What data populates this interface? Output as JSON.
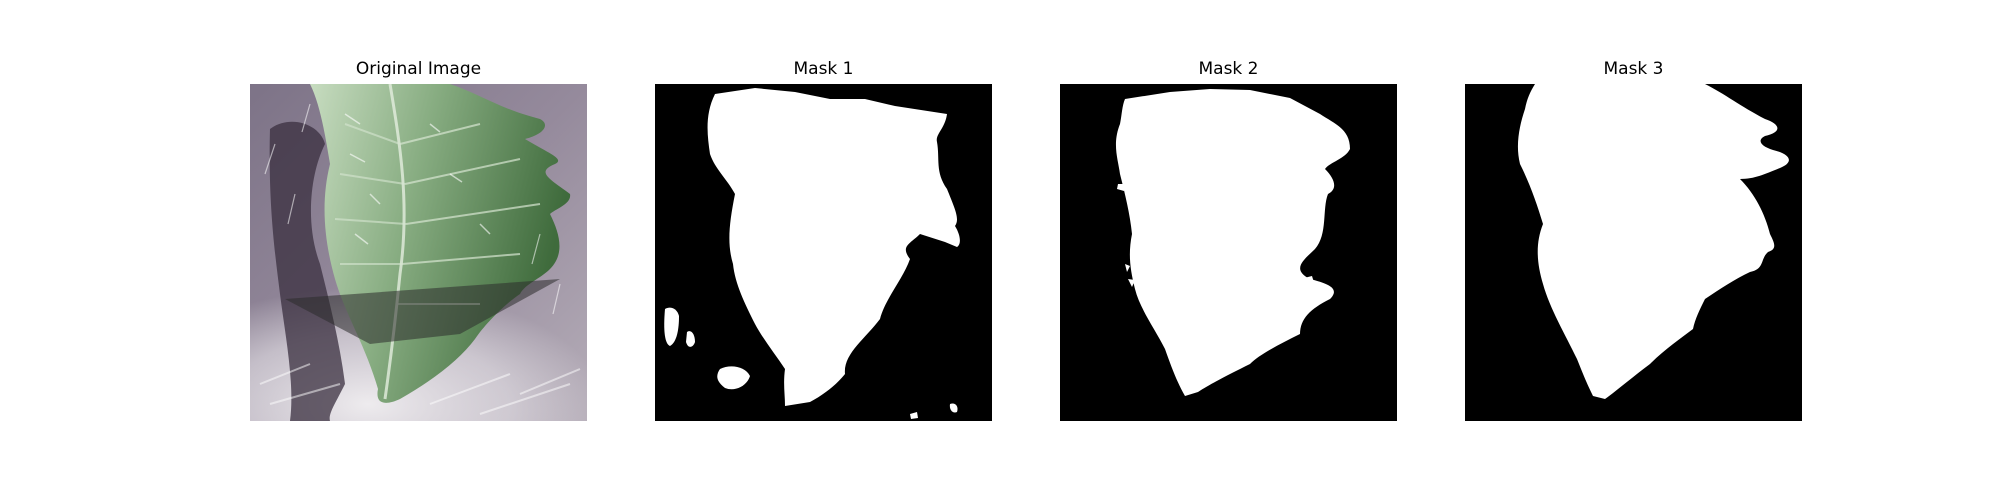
{
  "figure": {
    "panels": [
      {
        "title": "Original Image",
        "kind": "photo",
        "subject": "leaf"
      },
      {
        "title": "Mask 1",
        "kind": "mask"
      },
      {
        "title": "Mask 2",
        "kind": "mask"
      },
      {
        "title": "Mask 3",
        "kind": "mask"
      }
    ]
  },
  "colors": {
    "background": "#ffffff",
    "mask_foreground": "#ffffff",
    "mask_background": "#000000",
    "leaf_light": "#a9c8a0",
    "leaf_dark": "#3f6b3c",
    "backdrop": "#8c7f93"
  }
}
